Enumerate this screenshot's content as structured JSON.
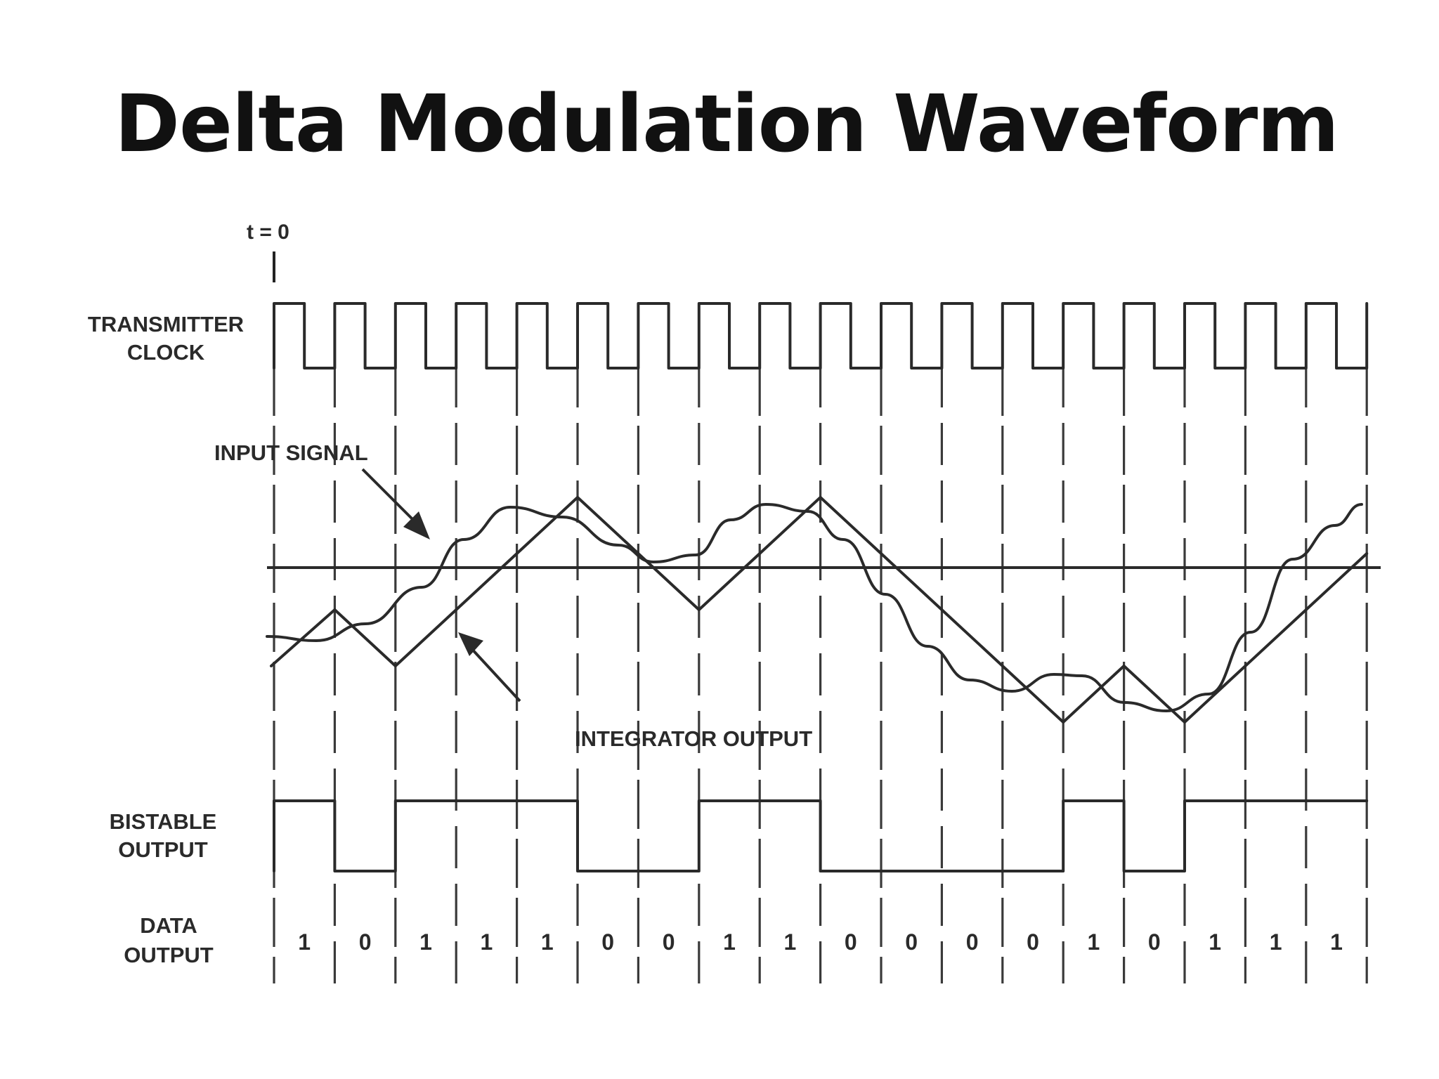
{
  "title": "Delta Modulation Waveform",
  "labels": {
    "t0": "t = 0",
    "transmitter_clock_1": "TRANSMITTER",
    "transmitter_clock_2": "CLOCK",
    "input_signal": "INPUT SIGNAL",
    "integrator_output": "INTEGRATOR OUTPUT",
    "bistable_output_1": "BISTABLE",
    "bistable_output_2": "OUTPUT",
    "data_output_1": "DATA",
    "data_output_2": "OUTPUT"
  },
  "data_bits": [
    "1",
    "0",
    "1",
    "1",
    "1",
    "0",
    "0",
    "1",
    "1",
    "0",
    "0",
    "0",
    "0",
    "1",
    "0",
    "1",
    "1",
    "1"
  ]
}
